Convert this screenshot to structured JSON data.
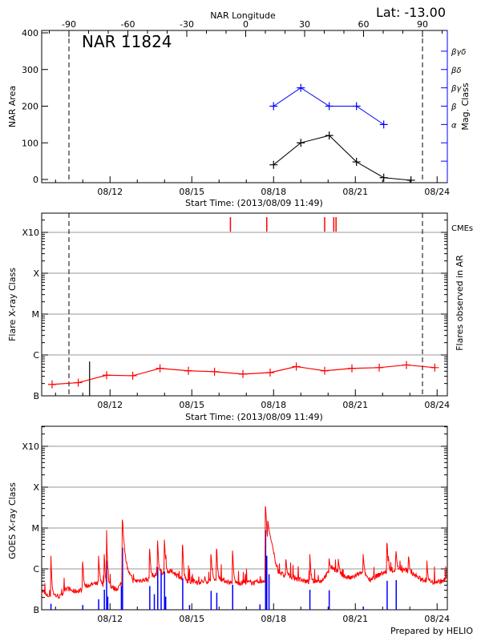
{
  "colors": {
    "area": "#000000",
    "mag": "#0000ff",
    "flare": "#ff0000",
    "cme": "#ff0000",
    "goes_long": "#ff0000",
    "goes_short": "#0000ff",
    "grid": "#999999"
  },
  "footer": "Prepared by HELIO",
  "chart_data": [
    {
      "type": "line",
      "title": "NAR 11824",
      "annotation": "Lat: -13.00",
      "xlabel": "Start Time: (2013/08/09 11:49)",
      "x2label": "NAR Longitude",
      "ylabel": "NAR Area",
      "y2label": "Mag. Class",
      "xlim": [
        "2013-08-09T11:49",
        "2013-08-24T11:49"
      ],
      "xticks": [
        "08/12",
        "08/15",
        "08/18",
        "08/21",
        "08/24"
      ],
      "x2ticks": [
        "-90",
        "-60",
        "-30",
        "0",
        "30",
        "60",
        "90"
      ],
      "yticks": [
        "0",
        "100",
        "200",
        "300",
        "400"
      ],
      "y2ticks": [
        "α",
        "β",
        "βγ",
        "βδ",
        "βγδ"
      ],
      "limb_markers_longitude": [
        -90,
        90
      ],
      "series": [
        {
          "x": [
            "2013-08-18T00:00",
            "2013-08-19T00:00",
            "2013-08-20T01:00",
            "2013-08-21T01:00",
            "2013-08-22T01:00",
            "2013-08-23T01:00"
          ],
          "values": [
            40,
            100,
            120,
            48,
            5,
            -2
          ]
        },
        {
          "x": [
            "2013-08-18T00:00",
            "2013-08-19T00:00",
            "2013-08-20T01:00",
            "2013-08-21T01:00",
            "2013-08-22T01:00"
          ],
          "values": [
            "β",
            "βγ",
            "β",
            "β",
            "α"
          ]
        }
      ]
    },
    {
      "type": "line",
      "xlabel": "Start Time: (2013/08/09 11:49)",
      "ylabel": "Flare X-ray Class",
      "y2label": "Flares observed in AR",
      "cme_label": "CMEs",
      "yscale": "log",
      "yticks": [
        "B",
        "C",
        "M",
        "X",
        "X10"
      ],
      "xticks": [
        "08/12",
        "08/15",
        "08/18",
        "08/21",
        "08/24"
      ],
      "grid": true,
      "series": [
        {
          "x": [
            "2013-08-09T21:00",
            "2013-08-10T20:00",
            "2013-08-11T21:00",
            "2013-08-12T20:00",
            "2013-08-13T20:00",
            "2013-08-14T21:00",
            "2013-08-15T20:00",
            "2013-08-16T21:00",
            "2013-08-17T21:00",
            "2013-08-18T20:00",
            "2013-08-19T21:00",
            "2013-08-20T21:00",
            "2013-08-21T21:00",
            "2013-08-22T21:00",
            "2013-08-23T22:00"
          ],
          "values": [
            1.9e-07,
            2.1e-07,
            3.2e-07,
            3.1e-07,
            4.7e-07,
            4.1e-07,
            3.9e-07,
            3.4e-07,
            3.7e-07,
            5.2e-07,
            4.1e-07,
            4.7e-07,
            4.9e-07,
            5.7e-07,
            4.9e-07
          ]
        }
      ],
      "flares": [
        {
          "x": "2013-08-11T06:00",
          "value": 6.9e-07
        }
      ],
      "cmes": [
        "2013-08-16T10:00",
        "2013-08-17T18:00",
        "2013-08-19T21:00",
        "2013-08-20T05:00",
        "2013-08-20T07:00"
      ]
    },
    {
      "type": "line",
      "ylabel": "GOES X-ray Class",
      "yscale": "log",
      "yticks": [
        "B",
        "C",
        "M",
        "X",
        "X10"
      ],
      "xticks": [
        "08/12",
        "08/15",
        "08/18",
        "08/21",
        "08/24"
      ],
      "grid": true,
      "goes_long_background": {
        "x": [
          "2013-08-09T13:00",
          "2013-08-09T16:00",
          "2013-08-10T00:00",
          "2013-08-10T05:00",
          "2013-08-10T09:00",
          "2013-08-10T16:00",
          "2013-08-10T23:00",
          "2013-08-11T06:00",
          "2013-08-11T14:00",
          "2013-08-11T22:00",
          "2013-08-12T06:00",
          "2013-08-12T12:00",
          "2013-08-12T22:00",
          "2013-08-13T09:00",
          "2013-08-13T20:00",
          "2013-08-14T07:00",
          "2013-08-14T18:00",
          "2013-08-15T05:00",
          "2013-08-15T16:00",
          "2013-08-16T02:00",
          "2013-08-16T13:00",
          "2013-08-17T00:00",
          "2013-08-17T11:00",
          "2013-08-17T19:00",
          "2013-08-17T22:00",
          "2013-08-18T03:00",
          "2013-08-18T09:00",
          "2013-08-18T20:00",
          "2013-08-19T07:00",
          "2013-08-19T18:00",
          "2013-08-20T04:00",
          "2013-08-20T12:00",
          "2013-08-20T20:00",
          "2013-08-21T05:00",
          "2013-08-21T13:00",
          "2013-08-22T00:00",
          "2013-08-22T11:00",
          "2013-08-22T21:00",
          "2013-08-23T08:00",
          "2013-08-23T19:00",
          "2013-08-24T06:00",
          "2013-08-24T09:00"
        ],
        "values": [
          2.8e-07,
          2.2e-07,
          2.2e-07,
          2.1e-07,
          3.5e-07,
          2.8e-07,
          3e-07,
          4.1e-07,
          4.4e-07,
          3.8e-07,
          3.2e-07,
          5.1e-07,
          5.1e-07,
          5.5e-07,
          8e-07,
          8.6e-07,
          5.1e-07,
          4.7e-07,
          5.1e-07,
          5.5e-07,
          4.4e-07,
          4.7e-07,
          4.5e-07,
          5.9e-07,
          1.7e-06,
          9.3e-07,
          6.9e-07,
          5.9e-07,
          4.7e-07,
          5.1e-07,
          1.08e-06,
          6.9e-07,
          5.9e-07,
          8e-07,
          5.5e-07,
          8e-07,
          9.3e-07,
          9.3e-07,
          5.9e-07,
          4.7e-07,
          5.1e-07,
          6.4e-07
        ]
      },
      "goes_long_peaks": {
        "x": [
          "2013-08-09T20:00",
          "2013-08-11T00:00",
          "2013-08-11T14:00",
          "2013-08-11T19:00",
          "2013-08-11T21:00",
          "2013-08-12T11:00",
          "2013-08-13T11:00",
          "2013-08-13T18:00",
          "2013-08-14T00:00",
          "2013-08-14T16:00",
          "2013-08-15T17:00",
          "2013-08-15T22:00",
          "2013-08-16T12:00",
          "2013-08-17T17:00",
          "2013-08-17T19:00",
          "2013-08-18T11:00",
          "2013-08-19T08:00",
          "2013-08-20T01:00",
          "2013-08-20T09:00",
          "2013-08-21T07:00",
          "2013-08-22T04:00",
          "2013-08-22T12:00",
          "2013-08-22T23:00",
          "2013-08-23T15:00"
        ],
        "values": [
          2.1e-06,
          1.5e-06,
          2.1e-06,
          2.3e-06,
          8.9e-06,
          1.6e-05,
          3.1e-06,
          4.9e-06,
          5.2e-06,
          3.9e-06,
          2.3e-06,
          3.1e-06,
          2.8e-06,
          3.4e-05,
          1.5e-05,
          1.7e-06,
          2.3e-06,
          1.8e-06,
          1.75e-06,
          2.3e-06,
          4.3e-06,
          2.7e-06,
          2e-06,
          1.6e-06
        ]
      },
      "goes_short_peaks": {
        "x": [
          "2013-08-09T20:00",
          "2013-08-11T00:00",
          "2013-08-11T14:00",
          "2013-08-11T19:00",
          "2013-08-11T21:00",
          "2013-08-11T22:00",
          "2013-08-12T10:00",
          "2013-08-12T11:00",
          "2013-08-13T11:00",
          "2013-08-13T15:00",
          "2013-08-13T18:00",
          "2013-08-13T21:00",
          "2013-08-14T00:00",
          "2013-08-14T01:00",
          "2013-08-14T16:00",
          "2013-08-14T22:00",
          "2013-08-15T17:00",
          "2013-08-15T22:00",
          "2013-08-16T12:00",
          "2013-08-17T12:00",
          "2013-08-17T17:00",
          "2013-08-17T18:00",
          "2013-08-17T20:00",
          "2013-08-19T08:00",
          "2013-08-20T01:00",
          "2013-08-21T07:00",
          "2013-08-22T04:00",
          "2013-08-22T12:00"
        ],
        "values": [
          1.4e-07,
          1.3e-07,
          1.8e-07,
          3.1e-07,
          1.6e-06,
          2.1e-07,
          3.8e-07,
          3.3e-06,
          3.8e-07,
          2.4e-07,
          1.1e-06,
          9.3e-07,
          8.6e-07,
          2.1e-07,
          5.9e-07,
          1.3e-07,
          2.9e-07,
          2.6e-07,
          4.1e-07,
          1.35e-07,
          8.9e-06,
          2.1e-06,
          7.4e-07,
          3.1e-07,
          3e-07,
          1.2e-07,
          5.1e-07,
          5.3e-07
        ]
      }
    }
  ]
}
